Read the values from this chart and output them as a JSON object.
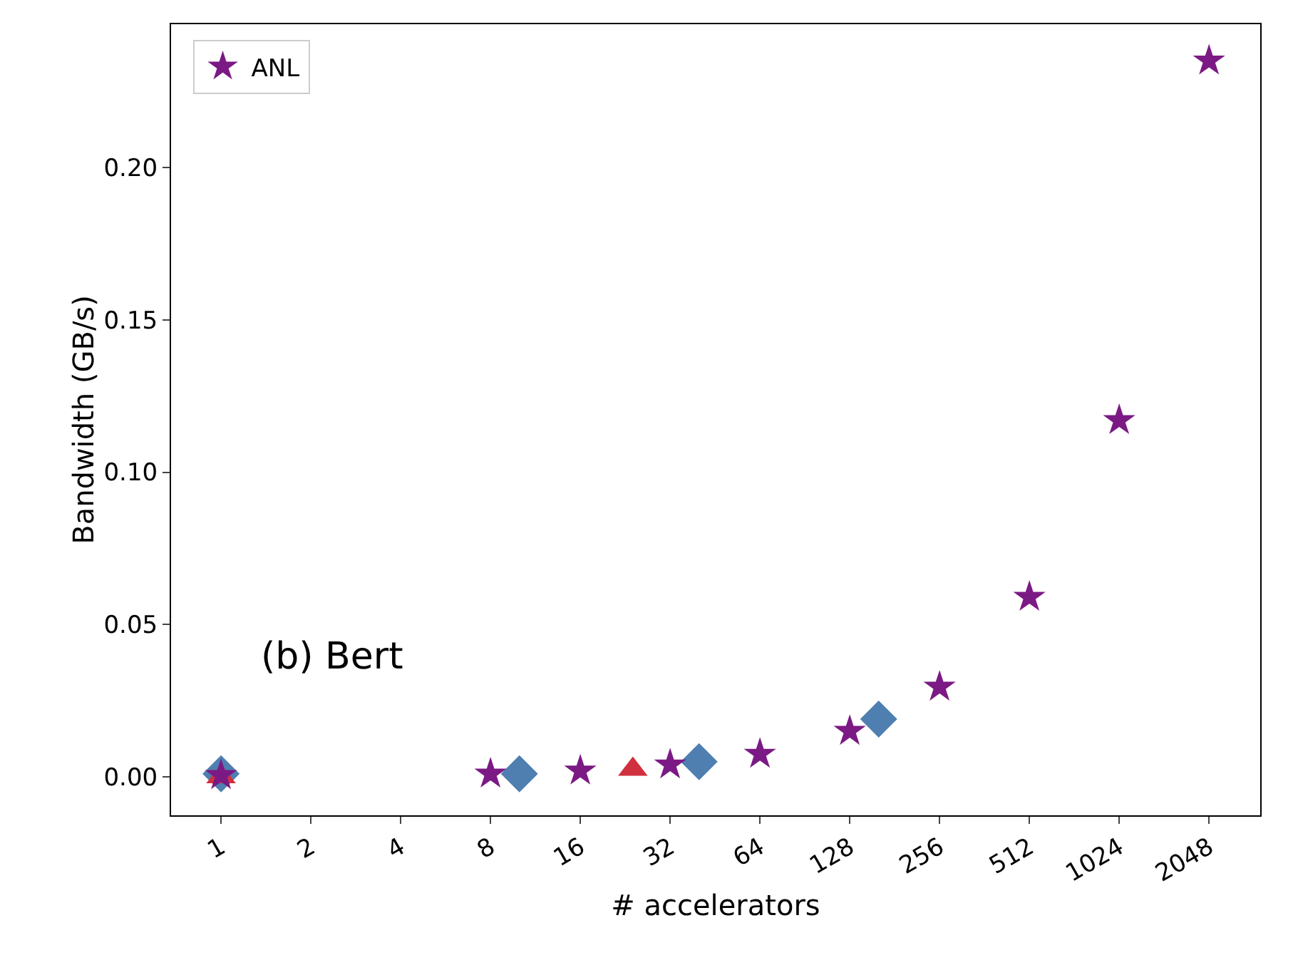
{
  "chart_data": {
    "type": "scatter",
    "xlabel": "# accelerators",
    "ylabel": "Bandwidth (GB/s)",
    "log": "x",
    "xlim": [
      0.68,
      3040
    ],
    "xticks": [
      1,
      2,
      4,
      8,
      16,
      32,
      64,
      128,
      256,
      512,
      1024,
      2048
    ],
    "ylim": [
      -0.0126,
      0.247
    ],
    "yticks": [
      {
        "value": 0,
        "label": "0.00"
      },
      {
        "value": 0.05,
        "label": "0.05"
      },
      {
        "value": 0.1,
        "label": "0.10"
      },
      {
        "value": 0.15,
        "label": "0.15"
      },
      {
        "value": 0.2,
        "label": "0.20"
      }
    ],
    "grid": false,
    "legend": "top left",
    "annotations": [
      "(b) Bert"
    ],
    "series": [
      {
        "color": "#4e7fb0",
        "marker": "diamond",
        "x": [
          1,
          10,
          40,
          160
        ],
        "values": [
          0.001,
          0.001,
          0.005,
          0.019
        ]
      },
      {
        "color": "#d1303f",
        "marker": "triangle",
        "x": [
          1,
          24
        ],
        "values": [
          0,
          0.0025
        ]
      },
      {
        "name": "ANL",
        "color": "#7b1a84",
        "marker": "star",
        "x": [
          1,
          8,
          16,
          32,
          64,
          128,
          256,
          512,
          1024,
          2048
        ],
        "values": [
          0.0005,
          0.001,
          0.002,
          0.004,
          0.0075,
          0.015,
          0.0295,
          0.059,
          0.117,
          0.235
        ]
      }
    ]
  }
}
